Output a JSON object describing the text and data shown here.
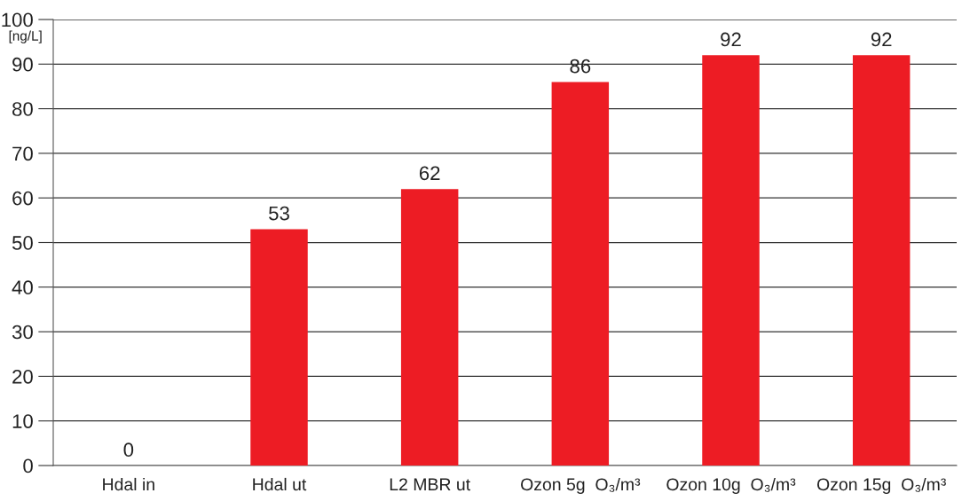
{
  "chart_data": {
    "type": "bar",
    "ylabel": "[ng/L]",
    "categories": [
      "Hdal in",
      "Hdal ut",
      "L2 MBR ut",
      "Ozon 5g  O₃/m³",
      "Ozon 10g  O₃/m³",
      "Ozon 15g  O₃/m³"
    ],
    "values": [
      0,
      53,
      62,
      86,
      92,
      92
    ],
    "color": "#ed1c24",
    "ylim": [
      0,
      100
    ],
    "yticks": [
      0,
      10,
      20,
      30,
      40,
      50,
      60,
      70,
      80,
      90,
      100
    ],
    "grid": "y",
    "data_labels": true
  }
}
